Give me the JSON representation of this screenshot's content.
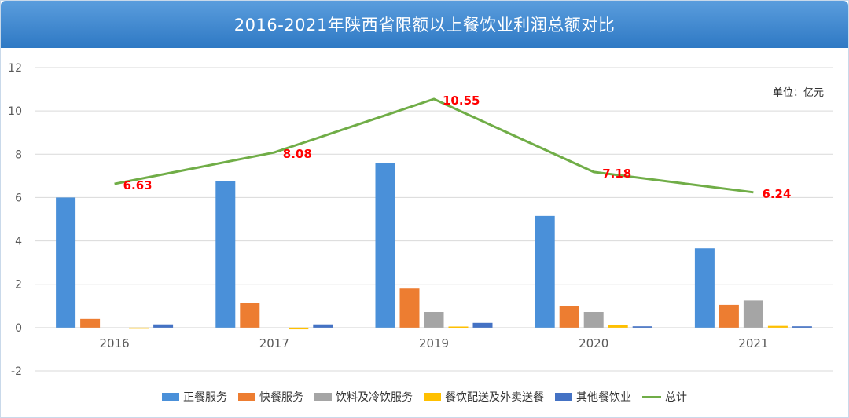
{
  "title": "2016-2021年陕西省限额以上餐饮业利润总额对比",
  "unit_label": "单位：亿元",
  "chart_data": {
    "type": "bar+line",
    "categories": [
      "2016",
      "2017",
      "2019",
      "2020",
      "2021"
    ],
    "ylim": [
      -2,
      12
    ],
    "yticks": [
      -2,
      0,
      2,
      4,
      6,
      8,
      10,
      12
    ],
    "grid": true,
    "series": [
      {
        "name": "正餐服务",
        "type": "bar",
        "color": "#4a90d9",
        "values": [
          6.0,
          6.75,
          7.6,
          5.15,
          3.65
        ]
      },
      {
        "name": "快餐服务",
        "type": "bar",
        "color": "#ed7d31",
        "values": [
          0.4,
          1.15,
          1.8,
          1.0,
          1.05
        ]
      },
      {
        "name": "饮料及冷饮服务",
        "type": "bar",
        "color": "#a5a5a5",
        "values": [
          0.0,
          0.0,
          0.72,
          0.72,
          1.25
        ]
      },
      {
        "name": "餐饮配送及外卖送餐",
        "type": "bar",
        "color": "#ffc000",
        "values": [
          -0.05,
          -0.08,
          0.05,
          0.12,
          0.08
        ]
      },
      {
        "name": "其他餐饮业",
        "type": "bar",
        "color": "#4472c4",
        "values": [
          0.15,
          0.15,
          0.22,
          0.06,
          0.06
        ]
      },
      {
        "name": "总计",
        "type": "line",
        "color": "#70ad47",
        "values": [
          6.63,
          8.08,
          10.55,
          7.18,
          6.24
        ]
      }
    ],
    "data_labels": [
      "6.63",
      "8.08",
      "10.55",
      "7.18",
      "6.24"
    ],
    "data_label_color": "#ff0000",
    "legend_position": "bottom"
  }
}
